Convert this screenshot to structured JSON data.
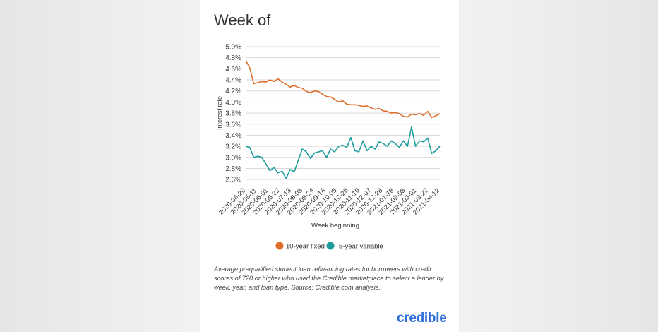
{
  "card_title": "Week of",
  "caption": "Average prequalified student loan refinancing rates for borrowers with credit scores of 720 or higher who used the Credible marketplace to select a lender by week, year, and loan type. Source: Credible.com analysis.",
  "logo_text": "credible",
  "chart_data": {
    "type": "line",
    "title": "",
    "xlabel": "Week beginning",
    "ylabel": "Interest rate",
    "ylim": [
      2.5,
      5.0
    ],
    "yticks": [
      2.6,
      2.8,
      3.0,
      3.2,
      3.4,
      3.6,
      3.8,
      4.0,
      4.2,
      4.4,
      4.6,
      4.8,
      5.0
    ],
    "ytick_labels": [
      "2.6%",
      "2.8%",
      "3.0%",
      "3.2%",
      "3.4%",
      "3.6%",
      "3.8%",
      "4.0%",
      "4.2%",
      "4.4%",
      "4.6%",
      "4.8%",
      "5.0%"
    ],
    "tick_labels": [
      "2020-04-20",
      "2020-05-11",
      "2020-06-01",
      "2020-06-22",
      "2020-07-13",
      "2020-08-03",
      "2020-08-24",
      "2020-09-14",
      "2020-10-05",
      "2020-10-26",
      "2020-11-16",
      "2020-12-07",
      "2020-12-28",
      "2021-01-18",
      "2021-02-08",
      "2021-03-01",
      "2021-03-22",
      "2021-04-12"
    ],
    "grid": true,
    "legend_position": "bottom",
    "series": [
      {
        "name": "10-year fixed",
        "color": "#e06c2b",
        "values": [
          4.75,
          4.62,
          4.33,
          4.35,
          4.37,
          4.36,
          4.4,
          4.37,
          4.42,
          4.36,
          4.32,
          4.27,
          4.3,
          4.26,
          4.25,
          4.19,
          4.17,
          4.2,
          4.19,
          4.14,
          4.1,
          4.09,
          4.05,
          4.0,
          4.02,
          3.96,
          3.95,
          3.95,
          3.94,
          3.92,
          3.93,
          3.89,
          3.87,
          3.88,
          3.84,
          3.83,
          3.8,
          3.81,
          3.79,
          3.74,
          3.73,
          3.78,
          3.77,
          3.79,
          3.76,
          3.83,
          3.72,
          3.75,
          3.79
        ]
      },
      {
        "name": "5-year variable",
        "color": "#1e9b9b",
        "values": [
          3.2,
          3.18,
          3.0,
          3.02,
          3.0,
          2.88,
          2.76,
          2.82,
          2.72,
          2.75,
          2.62,
          2.78,
          2.74,
          2.95,
          3.15,
          3.1,
          2.98,
          3.08,
          3.1,
          3.12,
          3.0,
          3.15,
          3.1,
          3.2,
          3.22,
          3.18,
          3.36,
          3.12,
          3.1,
          3.3,
          3.12,
          3.2,
          3.15,
          3.28,
          3.25,
          3.2,
          3.3,
          3.25,
          3.18,
          3.3,
          3.2,
          3.55,
          3.2,
          3.3,
          3.28,
          3.35,
          3.07,
          3.12,
          3.2
        ]
      }
    ]
  }
}
